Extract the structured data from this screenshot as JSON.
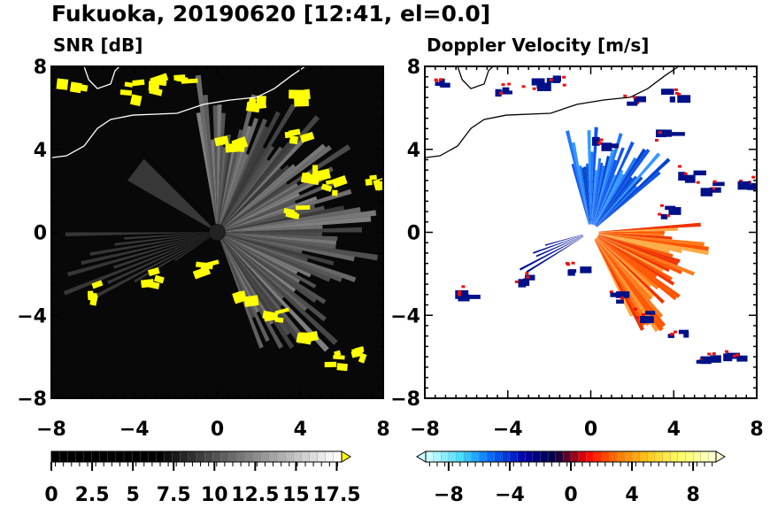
{
  "chart_data": [
    {
      "type": "heatmap",
      "title": "Fukuoka, 20190620 [12:41, el=0.0]",
      "subtitle": "SNR [dB]",
      "xlim": [
        -8,
        8
      ],
      "ylim": [
        -8,
        8
      ],
      "xticks": [
        "−8",
        "−4",
        "0",
        "4",
        "8"
      ],
      "yticks": [
        "8",
        "4",
        "0",
        "−4",
        "−8"
      ],
      "xtick_values": [
        -8,
        -4,
        0,
        4,
        8
      ],
      "ytick_values": [
        8,
        4,
        0,
        -4,
        -8
      ],
      "colorbar": {
        "min": 0,
        "max": 18,
        "ticks": [
          "0",
          "2.5",
          "5",
          "7.5",
          "10",
          "12.5",
          "15",
          "17.5"
        ],
        "tick_values": [
          0,
          2.5,
          5,
          7.5,
          10,
          12.5,
          15,
          17.5
        ],
        "colors": [
          "#000000",
          "#ffffff"
        ],
        "over_color": "#ffff00"
      },
      "echo_patches": [
        [
          -7.3,
          7.3
        ],
        [
          -3.0,
          7.2
        ],
        [
          -1.7,
          7.4
        ],
        [
          -4.4,
          7.0
        ],
        [
          1.8,
          6.5
        ],
        [
          3.8,
          6.8
        ],
        [
          3.5,
          4.7
        ],
        [
          4.6,
          3.0
        ],
        [
          5.5,
          2.3
        ],
        [
          7.5,
          2.5
        ],
        [
          3.6,
          1.1
        ],
        [
          -6.2,
          -2.8
        ],
        [
          -3.4,
          -2.1
        ],
        [
          -0.8,
          -1.6
        ],
        [
          1.2,
          -3.0
        ],
        [
          2.4,
          -3.8
        ],
        [
          4.1,
          -4.7
        ],
        [
          6.8,
          -5.7
        ],
        [
          5.5,
          -6.0
        ],
        [
          0.3,
          4.4
        ]
      ]
    },
    {
      "type": "heatmap",
      "subtitle": "Doppler Velocity [m/s]",
      "xlim": [
        -8,
        8
      ],
      "ylim": [
        -8,
        8
      ],
      "xticks": [
        "−8",
        "−4",
        "0",
        "4",
        "8"
      ],
      "yticks": [
        "8",
        "4",
        "0",
        "−4",
        "−8"
      ],
      "xtick_values": [
        -8,
        -4,
        0,
        4,
        8
      ],
      "ytick_values": [
        8,
        4,
        0,
        -4,
        -8
      ],
      "colorbar": {
        "min": -10,
        "max": 10,
        "ticks": [
          "−8",
          "−4",
          "0",
          "4",
          "8"
        ],
        "tick_values": [
          -8,
          -4,
          0,
          4,
          8
        ],
        "colors": [
          "#ccffff",
          "#44ddff",
          "#0066ff",
          "#0000aa",
          "#000044",
          "#ff0000",
          "#ff7700",
          "#ffcc22",
          "#ffff66",
          "#ffffcc"
        ]
      },
      "approaching_sector_deg": [
        40,
        105
      ],
      "receding_sector_deg": [
        -65,
        5
      ]
    }
  ],
  "coastline": [
    [
      [
        -8,
        3.6
      ],
      [
        -7.27,
        3.69
      ],
      [
        -6.42,
        4.16
      ],
      [
        -5.78,
        5.01
      ],
      [
        -5.14,
        5.44
      ],
      [
        -4.07,
        5.65
      ],
      [
        -1.94,
        5.74
      ],
      [
        -0.66,
        6.17
      ],
      [
        0.62,
        6.38
      ],
      [
        1.9,
        6.51
      ],
      [
        2.75,
        6.93
      ],
      [
        3.6,
        7.57
      ],
      [
        4.24,
        8
      ]
    ],
    [
      [
        -6.42,
        8
      ],
      [
        -6.2,
        7.36
      ],
      [
        -5.78,
        6.93
      ],
      [
        -5.14,
        7.15
      ],
      [
        -4.93,
        7.79
      ],
      [
        -4.71,
        8
      ]
    ]
  ]
}
